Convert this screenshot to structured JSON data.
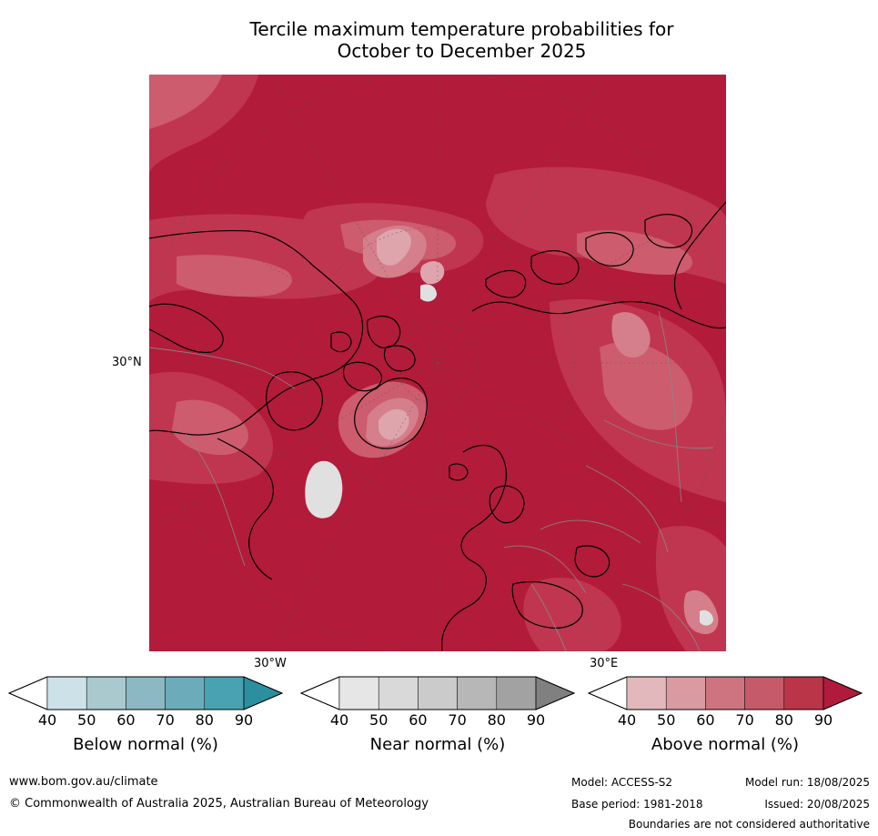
{
  "title": {
    "line1": "Tercile maximum temperature probabilities for",
    "line2": "October to December 2025"
  },
  "map": {
    "lat_label": "30°N",
    "lon_label_west": "30°W",
    "lon_label_east": "30°E",
    "colors": {
      "background": "#b31b3a",
      "above_90": "#b31b3a",
      "above_80": "#c03650",
      "above_70": "#cc5c6e",
      "above_60": "#d47f8b",
      "above_50": "#dea5ad",
      "near_normal": "#e0e0e0",
      "coastline": "#000000",
      "borders": "#888888"
    }
  },
  "colorbars": [
    {
      "name": "below",
      "label": "Below normal (%)",
      "ticks": [
        "40",
        "50",
        "60",
        "70",
        "80",
        "90"
      ],
      "colors": [
        "#ffffff",
        "#cce2e8",
        "#a9c9cf",
        "#8bb8c2",
        "#6cacba",
        "#48a2b2",
        "#2b8fa0"
      ]
    },
    {
      "name": "near",
      "label": "Near normal (%)",
      "ticks": [
        "40",
        "50",
        "60",
        "70",
        "80",
        "90"
      ],
      "colors": [
        "#ffffff",
        "#e6e6e6",
        "#d9d9d9",
        "#cbcbcb",
        "#b7b7b7",
        "#a2a2a2",
        "#808080"
      ]
    },
    {
      "name": "above",
      "label": "Above normal (%)",
      "ticks": [
        "40",
        "50",
        "60",
        "70",
        "80",
        "90"
      ],
      "colors": [
        "#ffffff",
        "#e2b8bc",
        "#d99aa2",
        "#cd7480",
        "#c55a6b",
        "#bb3549",
        "#b11b3b"
      ]
    }
  ],
  "footer": {
    "website": "www.bom.gov.au/climate",
    "copyright": "© Commonwealth of Australia 2025, Australian Bureau of Meteorology",
    "model": "Model: ACCESS-S2",
    "base_period": "Base period: 1981-2018",
    "model_run": "Model run: 18/08/2025",
    "issued": "Issued: 20/08/2025",
    "disclaimer": "Boundaries are not considered authoritative"
  }
}
